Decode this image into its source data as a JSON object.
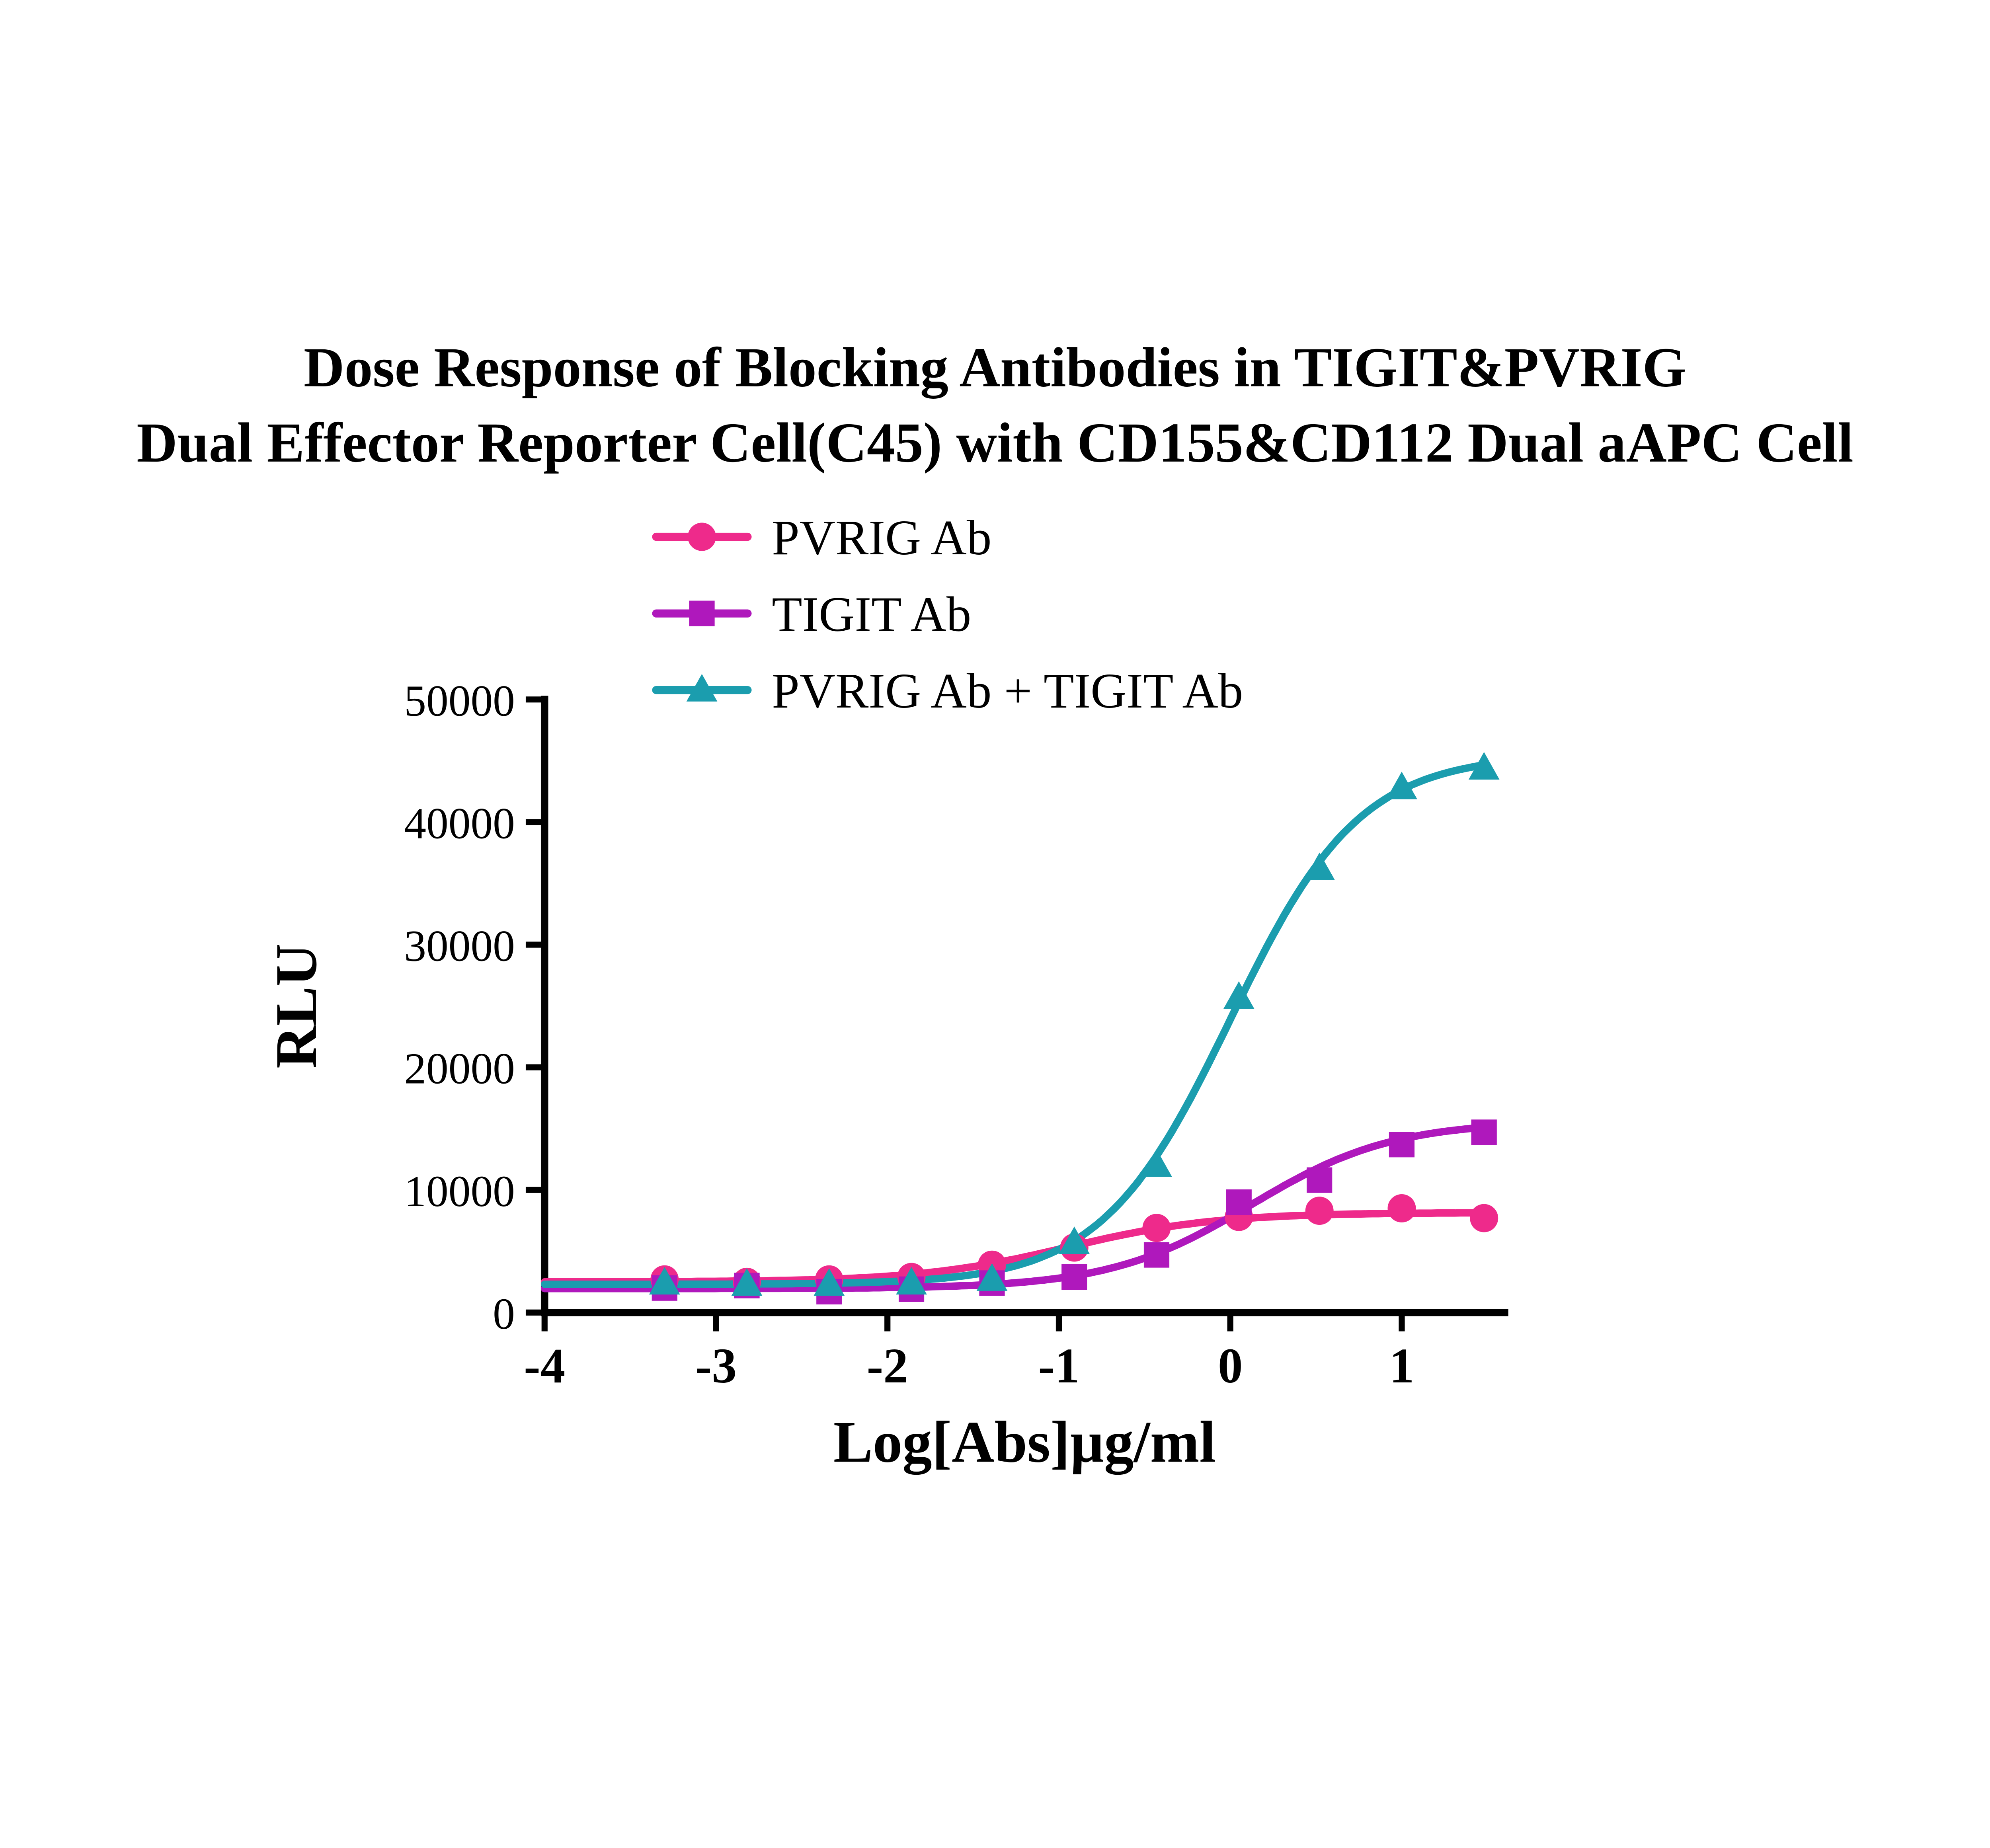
{
  "chart_data": {
    "type": "scatter",
    "title": "Dose Response of Blocking Antibodies in TIGIT&PVRIG Dual Effector Reporter Cell(C45) with CD155&CD112 Dual aAPC Cell",
    "title_line1": "Dose Response of Blocking Antibodies in TIGIT&PVRIG",
    "title_line2": "Dual Effector Reporter Cell(C45) with CD155&CD112 Dual aAPC Cell",
    "xlabel": "Log[Abs]µg/ml",
    "ylabel": "RLU",
    "xlim": [
      -4,
      1.6
    ],
    "ylim": [
      0,
      50000
    ],
    "xticks": [
      -4,
      -3,
      -2,
      -1,
      0,
      1
    ],
    "yticks": [
      0,
      10000,
      20000,
      30000,
      40000,
      50000
    ],
    "grid": false,
    "legend_position": "top-left-above-plot",
    "x": [
      -3.3,
      -2.82,
      -2.34,
      -1.86,
      -1.39,
      -0.91,
      -0.43,
      0.05,
      0.52,
      1.0,
      1.48
    ],
    "series": [
      {
        "name": "PVRIG Ab",
        "color": "#EE2A8B",
        "marker": "circle",
        "values": [
          2700,
          2500,
          2700,
          2900,
          3900,
          5300,
          6900,
          7800,
          8300,
          8500,
          7700
        ],
        "curve_fit": {
          "bottom": 2500,
          "top": 8150,
          "logEC50": -0.95,
          "hill": 1.0
        }
      },
      {
        "name": "TIGIT Ab",
        "color": "#AF18BC",
        "marker": "square",
        "values": [
          2000,
          2200,
          1700,
          1900,
          2400,
          2900,
          4700,
          9000,
          10800,
          13700,
          14700
        ],
        "curve_fit": {
          "bottom": 1950,
          "top": 15600,
          "logEC50": 0.12,
          "hill": 1.05
        }
      },
      {
        "name": "PVRIG Ab + TIGIT Ab",
        "color": "#1B9DAE",
        "marker": "triangle",
        "values": [
          2400,
          2300,
          2300,
          2400,
          2700,
          5700,
          12000,
          25700,
          36200,
          42800,
          44400
        ],
        "curve_fit": {
          "bottom": 2300,
          "top": 45500,
          "logEC50": 0.0,
          "hill": 1.15
        }
      }
    ]
  }
}
